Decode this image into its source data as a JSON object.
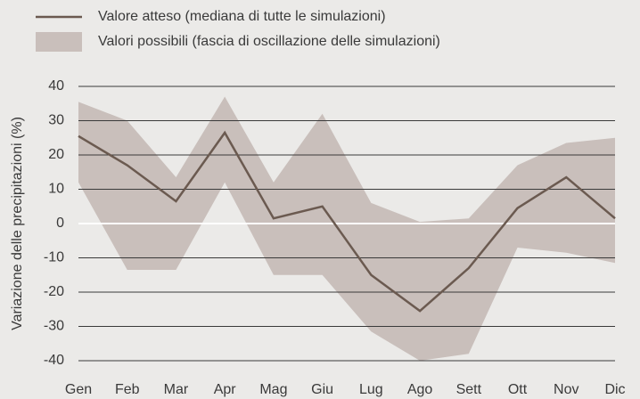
{
  "chart_data": {
    "type": "line",
    "ylabel": "Variazione delle precipitazioni (%)",
    "categories": [
      "Gen",
      "Feb",
      "Mar",
      "Apr",
      "Mag",
      "Giu",
      "Lug",
      "Ago",
      "Sett",
      "Ott",
      "Nov",
      "Dic"
    ],
    "series": [
      {
        "name": "Valore atteso (mediana di tutte le simulazioni)",
        "color": "#6b5a50",
        "values": [
          25.5,
          17,
          6.5,
          26.5,
          1.5,
          5,
          -15,
          -25.5,
          -13,
          4.5,
          13.5,
          1.5
        ]
      }
    ],
    "band": {
      "name": "Valori possibili (fascia di oscillazione delle simulazioni)",
      "color": "#c9bfbb",
      "upper": [
        35.5,
        30,
        13.5,
        37,
        12,
        32,
        6,
        0.5,
        1.5,
        17,
        23.5,
        25
      ],
      "lower": [
        12,
        -13.5,
        -13.5,
        12,
        -15,
        -15,
        -31.5,
        -40,
        -38,
        -7,
        -8.5,
        -11.5
      ]
    },
    "ylim": [
      -40,
      40
    ],
    "yticks": [
      -40,
      -30,
      -20,
      -10,
      0,
      10,
      20,
      30,
      40
    ],
    "grid": true,
    "grid_color": "#3a3a3a",
    "zero_line_color": "#ffffff"
  }
}
